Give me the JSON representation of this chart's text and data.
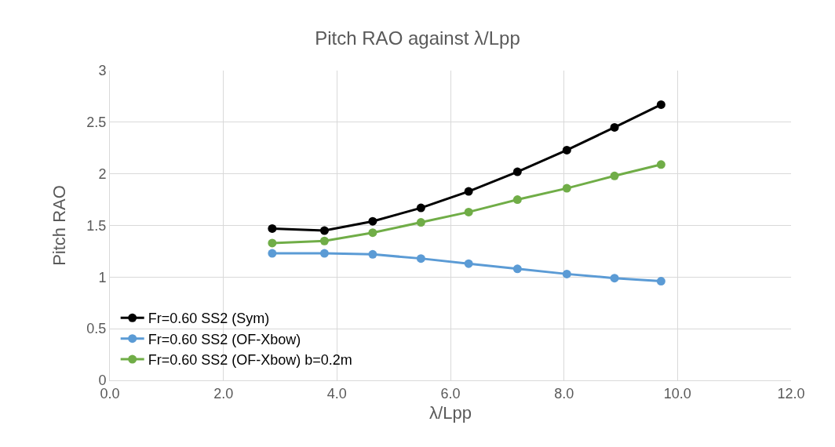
{
  "chart_data": {
    "type": "line",
    "title": "Pitch RAO against λ/Lpp",
    "xlabel": "λ/Lpp",
    "ylabel": "Pitch RAO",
    "x": [
      2.86,
      3.78,
      4.63,
      5.48,
      6.32,
      7.18,
      8.05,
      8.89,
      9.71
    ],
    "series": [
      {
        "name": "Fr=0.60 SS2 (Sym)",
        "color": "#000000",
        "values": [
          1.47,
          1.45,
          1.54,
          1.67,
          1.83,
          2.02,
          2.23,
          2.45,
          2.67
        ]
      },
      {
        "name": "Fr=0.60 SS2 (OF-Xbow)",
        "color": "#5b9bd5",
        "values": [
          1.23,
          1.23,
          1.22,
          1.18,
          1.13,
          1.08,
          1.03,
          0.99,
          0.96
        ]
      },
      {
        "name": "Fr=0.60 SS2 (OF-Xbow) b=0.2m",
        "color": "#70ad47",
        "values": [
          1.33,
          1.35,
          1.43,
          1.53,
          1.63,
          1.75,
          1.86,
          1.98,
          2.09
        ]
      }
    ],
    "xlim": [
      0,
      12
    ],
    "xticks": [
      {
        "value": 0,
        "label": "0.0"
      },
      {
        "value": 2,
        "label": "2.0"
      },
      {
        "value": 4,
        "label": "4.0"
      },
      {
        "value": 6,
        "label": "6.0"
      },
      {
        "value": 8,
        "label": "8.0"
      },
      {
        "value": 10,
        "label": "10.0"
      },
      {
        "value": 12,
        "label": "12.0"
      }
    ],
    "ylim": [
      0,
      3
    ],
    "yticks": [
      0,
      0.5,
      1,
      1.5,
      2,
      2.5,
      3
    ],
    "grid": true,
    "legend": "bottom left",
    "marker": "circle",
    "line_style": "solid"
  }
}
